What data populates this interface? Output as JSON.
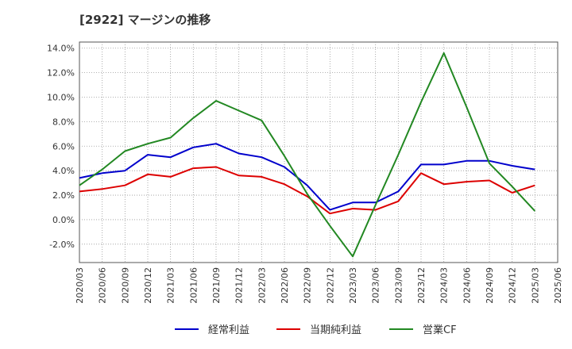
{
  "chart_data": {
    "type": "line",
    "title": "[2922]  マージンの推移",
    "x": [
      "2020/03",
      "2020/06",
      "2020/09",
      "2020/12",
      "2021/03",
      "2021/06",
      "2021/09",
      "2021/12",
      "2022/03",
      "2022/06",
      "2022/09",
      "2022/12",
      "2023/03",
      "2023/06",
      "2023/09",
      "2023/12",
      "2024/03",
      "2024/06",
      "2024/09",
      "2024/12",
      "2025/03",
      "2025/06"
    ],
    "y_ticks": [
      "-2.0%",
      "0.0%",
      "2.0%",
      "4.0%",
      "6.0%",
      "8.0%",
      "10.0%",
      "12.0%",
      "14.0%"
    ],
    "ylim": [
      -3.5,
      14.5
    ],
    "grid": true,
    "legend_position": "bottom",
    "series": [
      {
        "name": "経常利益",
        "color": "#0000cc",
        "values": [
          3.4,
          3.8,
          4.0,
          5.3,
          5.1,
          5.9,
          6.2,
          5.4,
          5.1,
          4.3,
          2.8,
          0.8,
          1.4,
          1.4,
          2.3,
          4.5,
          4.5,
          4.8,
          4.8,
          4.4,
          4.1,
          null
        ]
      },
      {
        "name": "当期純利益",
        "color": "#dd0000",
        "values": [
          2.3,
          2.5,
          2.8,
          3.7,
          3.5,
          4.2,
          4.3,
          3.6,
          3.5,
          2.9,
          1.9,
          0.5,
          0.9,
          0.8,
          1.5,
          3.8,
          2.9,
          3.1,
          3.2,
          2.2,
          2.8,
          null
        ]
      },
      {
        "name": "営業CF",
        "color": "#228822",
        "values": [
          2.8,
          4.1,
          5.6,
          6.2,
          6.7,
          8.3,
          9.7,
          8.9,
          8.1,
          5.2,
          2.1,
          -0.5,
          -3.0,
          1.2,
          5.3,
          9.6,
          13.6,
          9.2,
          4.6,
          2.7,
          0.7,
          null
        ]
      }
    ]
  }
}
